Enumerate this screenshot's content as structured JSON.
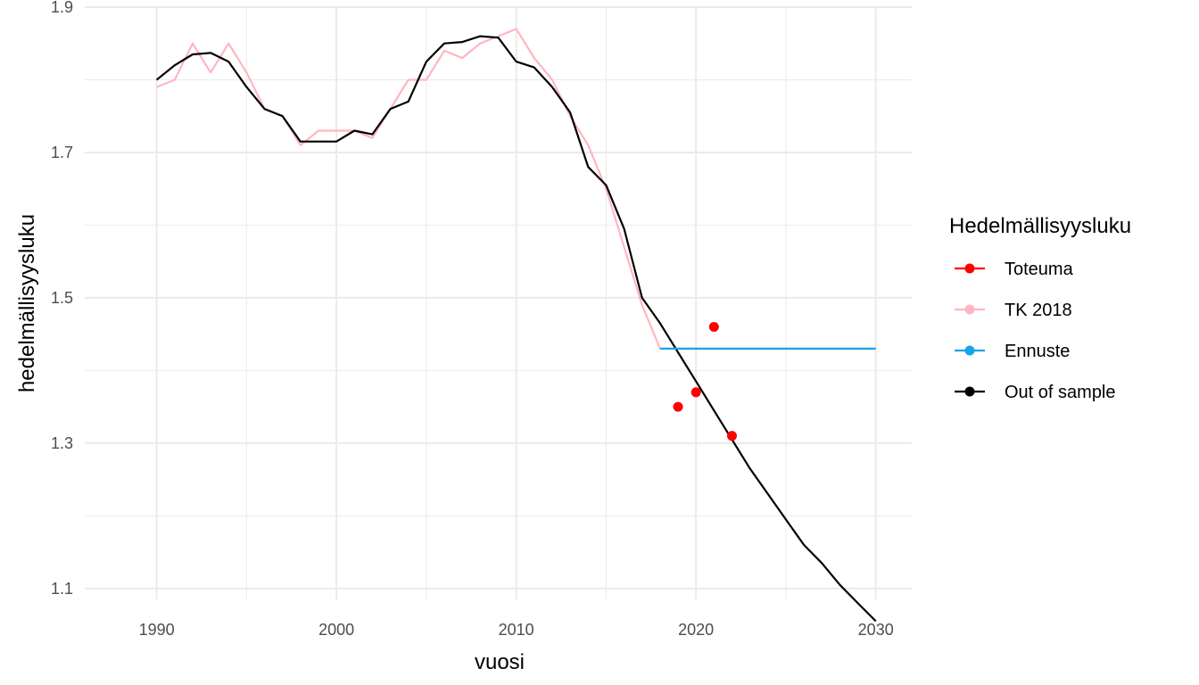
{
  "chart_data": {
    "type": "line",
    "title": "",
    "xlabel": "vuosi",
    "ylabel": "hedelmällisyysluku",
    "xlim": [
      1986,
      2032
    ],
    "ylim": [
      1.085,
      1.9
    ],
    "grid": true,
    "legend_position": "right",
    "legend_title": "Hedelmällisyysluku",
    "x_ticks": [
      1990,
      2000,
      2010,
      2020,
      2030
    ],
    "x_tick_labels": [
      "1990",
      "2000",
      "2010",
      "2020",
      "2030"
    ],
    "y_ticks": [
      1.1,
      1.3,
      1.5,
      1.7,
      1.9
    ],
    "y_tick_labels": [
      "1.1",
      "1.3",
      "1.5",
      "1.7",
      "1.9"
    ],
    "legend": [
      {
        "name": "Toteuma",
        "color": "#ff0000"
      },
      {
        "name": "TK 2018",
        "color": "#ffb6c1"
      },
      {
        "name": "Ennuste",
        "color": "#1aa3e8"
      },
      {
        "name": "Out of sample",
        "color": "#000000"
      }
    ],
    "series": [
      {
        "name": "TK 2018",
        "color": "#ffb6c1",
        "kind": "line",
        "x": [
          1990,
          1991,
          1992,
          1993,
          1994,
          1995,
          1996,
          1997,
          1998,
          1999,
          2000,
          2001,
          2002,
          2003,
          2004,
          2005,
          2006,
          2007,
          2008,
          2009,
          2010,
          2011,
          2012,
          2013,
          2014,
          2015,
          2016,
          2017,
          2018
        ],
        "values": [
          1.79,
          1.8,
          1.85,
          1.81,
          1.85,
          1.81,
          1.76,
          1.75,
          1.71,
          1.73,
          1.73,
          1.73,
          1.72,
          1.76,
          1.8,
          1.8,
          1.84,
          1.83,
          1.85,
          1.86,
          1.87,
          1.83,
          1.8,
          1.75,
          1.71,
          1.65,
          1.57,
          1.49,
          1.43
        ]
      },
      {
        "name": "Out of sample",
        "color": "#000000",
        "kind": "line",
        "x": [
          1990,
          1991,
          1992,
          1993,
          1994,
          1995,
          1996,
          1997,
          1998,
          1999,
          2000,
          2001,
          2002,
          2003,
          2004,
          2005,
          2006,
          2007,
          2008,
          2009,
          2010,
          2011,
          2012,
          2013,
          2014,
          2015,
          2016,
          2017,
          2018,
          2019,
          2020,
          2021,
          2022,
          2023,
          2024,
          2025,
          2026,
          2027,
          2028,
          2029,
          2030
        ],
        "values": [
          1.8,
          1.82,
          1.835,
          1.837,
          1.825,
          1.79,
          1.76,
          1.75,
          1.715,
          1.715,
          1.715,
          1.73,
          1.725,
          1.76,
          1.77,
          1.825,
          1.85,
          1.852,
          1.86,
          1.858,
          1.825,
          1.817,
          1.79,
          1.755,
          1.68,
          1.655,
          1.595,
          1.5,
          1.465,
          1.425,
          1.385,
          1.345,
          1.305,
          1.265,
          1.23,
          1.195,
          1.16,
          1.135,
          1.105,
          1.08,
          1.055
        ]
      },
      {
        "name": "Ennuste",
        "color": "#1aa3e8",
        "kind": "line",
        "x": [
          2018,
          2030
        ],
        "values": [
          1.43,
          1.43
        ]
      },
      {
        "name": "Toteuma",
        "color": "#ff0000",
        "kind": "points",
        "x": [
          2019,
          2020,
          2021,
          2022
        ],
        "values": [
          1.35,
          1.37,
          1.46,
          1.31
        ]
      }
    ]
  }
}
